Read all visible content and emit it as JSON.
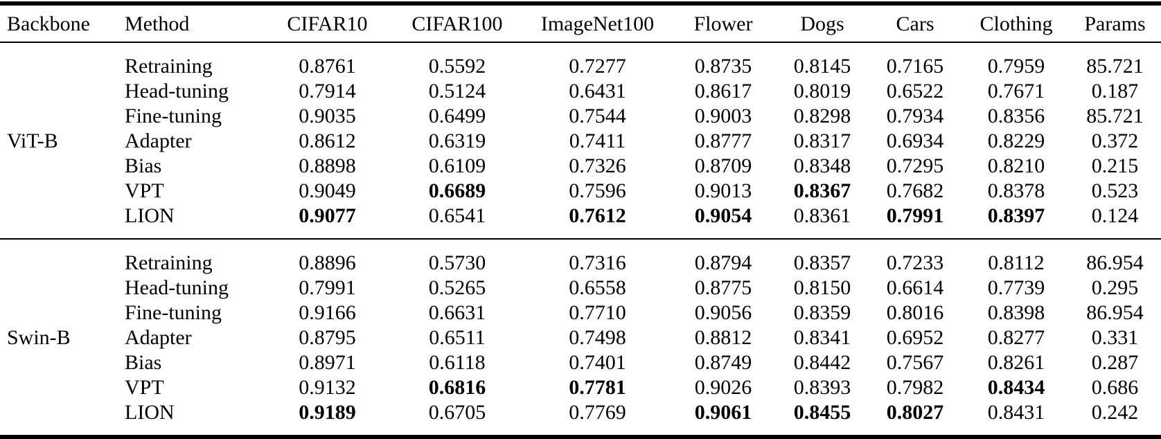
{
  "colors": {
    "text": "#000000",
    "background": "#ffffff",
    "rule": "#000000"
  },
  "table": {
    "columns": [
      "Backbone",
      "Method",
      "CIFAR10",
      "CIFAR100",
      "ImageNet100",
      "Flower",
      "Dogs",
      "Cars",
      "Clothing",
      "Params"
    ],
    "groups": [
      {
        "backbone": "ViT-B",
        "rows": [
          {
            "method": "Retraining",
            "values": [
              "0.8761",
              "0.5592",
              "0.7277",
              "0.8735",
              "0.8145",
              "0.7165",
              "0.7959",
              "85.721"
            ],
            "bold": []
          },
          {
            "method": "Head-tuning",
            "values": [
              "0.7914",
              "0.5124",
              "0.6431",
              "0.8617",
              "0.8019",
              "0.6522",
              "0.7671",
              "0.187"
            ],
            "bold": []
          },
          {
            "method": "Fine-tuning",
            "values": [
              "0.9035",
              "0.6499",
              "0.7544",
              "0.9003",
              "0.8298",
              "0.7934",
              "0.8356",
              "85.721"
            ],
            "bold": []
          },
          {
            "method": "Adapter",
            "values": [
              "0.8612",
              "0.6319",
              "0.7411",
              "0.8777",
              "0.8317",
              "0.6934",
              "0.8229",
              "0.372"
            ],
            "bold": []
          },
          {
            "method": "Bias",
            "values": [
              "0.8898",
              "0.6109",
              "0.7326",
              "0.8709",
              "0.8348",
              "0.7295",
              "0.8210",
              "0.215"
            ],
            "bold": []
          },
          {
            "method": "VPT",
            "values": [
              "0.9049",
              "0.6689",
              "0.7596",
              "0.9013",
              "0.8367",
              "0.7682",
              "0.8378",
              "0.523"
            ],
            "bold": [
              1,
              4
            ]
          },
          {
            "method": "LION",
            "values": [
              "0.9077",
              "0.6541",
              "0.7612",
              "0.9054",
              "0.8361",
              "0.7991",
              "0.8397",
              "0.124"
            ],
            "bold": [
              0,
              2,
              3,
              5,
              6
            ]
          }
        ]
      },
      {
        "backbone": "Swin-B",
        "rows": [
          {
            "method": "Retraining",
            "values": [
              "0.8896",
              "0.5730",
              "0.7316",
              "0.8794",
              "0.8357",
              "0.7233",
              "0.8112",
              "86.954"
            ],
            "bold": []
          },
          {
            "method": "Head-tuning",
            "values": [
              "0.7991",
              "0.5265",
              "0.6558",
              "0.8775",
              "0.8150",
              "0.6614",
              "0.7739",
              "0.295"
            ],
            "bold": []
          },
          {
            "method": "Fine-tuning",
            "values": [
              "0.9166",
              "0.6631",
              "0.7710",
              "0.9056",
              "0.8359",
              "0.8016",
              "0.8398",
              "86.954"
            ],
            "bold": []
          },
          {
            "method": "Adapter",
            "values": [
              "0.8795",
              "0.6511",
              "0.7498",
              "0.8812",
              "0.8341",
              "0.6952",
              "0.8277",
              "0.331"
            ],
            "bold": []
          },
          {
            "method": "Bias",
            "values": [
              "0.8971",
              "0.6118",
              "0.7401",
              "0.8749",
              "0.8442",
              "0.7567",
              "0.8261",
              "0.287"
            ],
            "bold": []
          },
          {
            "method": "VPT",
            "values": [
              "0.9132",
              "0.6816",
              "0.7781",
              "0.9026",
              "0.8393",
              "0.7982",
              "0.8434",
              "0.686"
            ],
            "bold": [
              1,
              2,
              6
            ]
          },
          {
            "method": "LION",
            "values": [
              "0.9189",
              "0.6705",
              "0.7769",
              "0.9061",
              "0.8455",
              "0.8027",
              "0.8431",
              "0.242"
            ],
            "bold": [
              0,
              3,
              4,
              5
            ]
          }
        ]
      }
    ]
  }
}
